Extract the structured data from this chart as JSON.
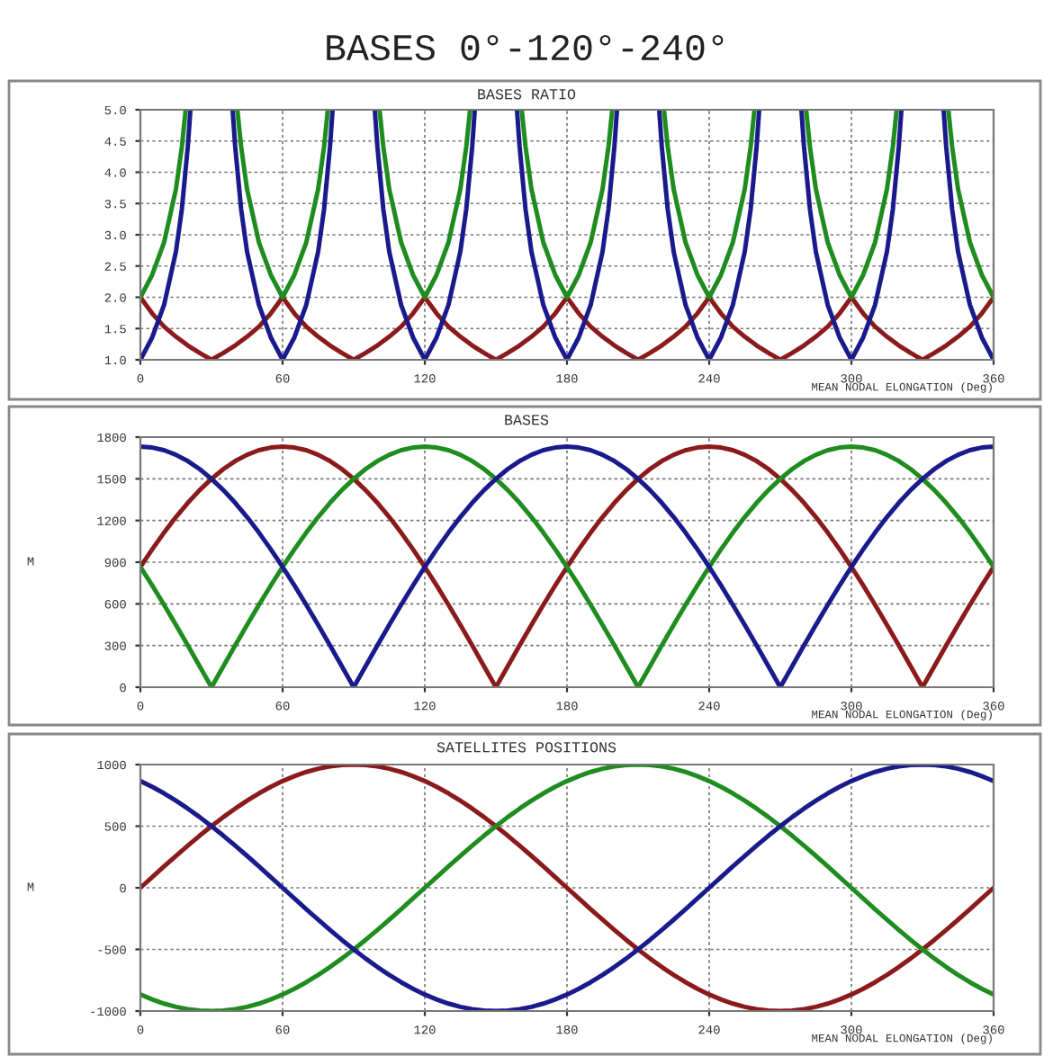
{
  "chart_data": [
    {
      "type": "line",
      "title": "BASES 0°-120°-240°",
      "subtitle": "BASES RATIO",
      "xlabel": "MEAN NODAL ELONGATION (Deg)",
      "xlim": [
        0,
        360
      ],
      "xticks": [
        0,
        60,
        120,
        180,
        240,
        300,
        360
      ],
      "ylim": [
        1,
        5
      ],
      "yticks": [
        {
          "value": 1,
          "label": "1.0"
        },
        {
          "value": 1.5,
          "label": "1.5"
        },
        {
          "value": 2,
          "label": "2.0"
        },
        {
          "value": 2.5,
          "label": "2.5"
        },
        {
          "value": 3,
          "label": "3.0"
        },
        {
          "value": 3.5,
          "label": "3.5"
        },
        {
          "value": 4,
          "label": "4.0"
        },
        {
          "value": 4.5,
          "label": "4.5"
        },
        {
          "value": 5,
          "label": "5.0"
        }
      ],
      "grid": true,
      "line_style": "solid",
      "marker": "none",
      "x": [
        0,
        5,
        10,
        15,
        20,
        25,
        30,
        35,
        40,
        45,
        50,
        55,
        60,
        65,
        70,
        75,
        80,
        85,
        90,
        95,
        100,
        105,
        110,
        115,
        120,
        125,
        130,
        135,
        140,
        145,
        150,
        155,
        160,
        165,
        170,
        175,
        180,
        185,
        190,
        195,
        200,
        205,
        210,
        215,
        220,
        225,
        230,
        235,
        240,
        245,
        250,
        255,
        260,
        265,
        270,
        275,
        280,
        285,
        290,
        295,
        300,
        305,
        310,
        315,
        320,
        325,
        330,
        335,
        340,
        345,
        350,
        355,
        360
      ],
      "series": [
        {
          "color": "#8b1a1a",
          "values": [
            2,
            1.74,
            1.53,
            1.37,
            1.23,
            1.11,
            1,
            1.11,
            1.23,
            1.37,
            1.53,
            1.74,
            2,
            1.74,
            1.53,
            1.37,
            1.23,
            1.11,
            1,
            1.11,
            1.23,
            1.37,
            1.53,
            1.74,
            2,
            1.74,
            1.53,
            1.37,
            1.23,
            1.11,
            1,
            1.11,
            1.23,
            1.37,
            1.53,
            1.74,
            2,
            1.74,
            1.53,
            1.37,
            1.23,
            1.11,
            1,
            1.11,
            1.23,
            1.37,
            1.53,
            1.74,
            2,
            1.74,
            1.53,
            1.37,
            1.23,
            1.11,
            1,
            1.11,
            1.23,
            1.37,
            1.53,
            1.74,
            2,
            1.74,
            1.53,
            1.37,
            1.23,
            1.11,
            1,
            1.11,
            1.23,
            1.37,
            1.53,
            1.74,
            2
          ]
        },
        {
          "color": "#1e8c1e",
          "x": [
            0,
            5,
            10,
            15,
            17.5,
            19.1,
            30,
            40.9,
            42.5,
            45,
            50,
            55,
            60,
            65,
            70,
            75,
            77.5,
            79.1,
            90,
            100.9,
            102.5,
            105,
            110,
            115,
            120,
            125,
            130,
            135,
            137.5,
            139.1,
            150,
            160.9,
            162.5,
            165,
            170,
            175,
            180,
            185,
            190,
            195,
            197.5,
            199.1,
            210,
            220.9,
            222.5,
            225,
            230,
            235,
            240,
            245,
            250,
            255,
            257.5,
            259.1,
            270,
            280.9,
            282.5,
            285,
            290,
            295,
            300,
            305,
            310,
            315,
            317.5,
            319.1,
            330,
            340.9,
            342.5,
            345,
            350,
            355,
            360
          ],
          "values": [
            2,
            2.36,
            2.88,
            3.73,
            4.41,
            5,
            null,
            5,
            4.41,
            3.73,
            2.88,
            2.36,
            2,
            2.36,
            2.88,
            3.73,
            4.41,
            5,
            null,
            5,
            4.41,
            3.73,
            2.88,
            2.36,
            2,
            2.36,
            2.88,
            3.73,
            4.41,
            5,
            null,
            5,
            4.41,
            3.73,
            2.88,
            2.36,
            2,
            2.36,
            2.88,
            3.73,
            4.41,
            5,
            null,
            5,
            4.41,
            3.73,
            2.88,
            2.36,
            2,
            2.36,
            2.88,
            3.73,
            4.41,
            5,
            null,
            5,
            4.41,
            3.73,
            2.88,
            2.36,
            2,
            2.36,
            2.88,
            3.73,
            4.41,
            5,
            null,
            5,
            4.41,
            3.73,
            2.88,
            2.36,
            2
          ]
        },
        {
          "color": "#1a1a8c",
          "x": [
            0,
            5,
            10,
            15,
            17.5,
            20,
            21.1,
            30,
            38.9,
            40,
            42.5,
            45,
            50,
            55,
            60,
            65,
            70,
            75,
            77.5,
            80,
            81.1,
            90,
            98.9,
            100,
            102.5,
            105,
            110,
            115,
            120,
            125,
            130,
            135,
            137.5,
            140,
            141.1,
            150,
            158.9,
            160,
            162.5,
            165,
            170,
            175,
            180,
            185,
            190,
            195,
            197.5,
            200,
            201.1,
            210,
            218.9,
            220,
            222.5,
            225,
            230,
            235,
            240,
            245,
            250,
            255,
            257.5,
            260,
            261.1,
            270,
            278.9,
            280,
            282.5,
            285,
            290,
            295,
            300,
            305,
            310,
            315,
            317.5,
            320,
            321.1,
            330,
            338.9,
            340,
            342.5,
            345,
            350,
            355,
            360
          ],
          "values": [
            1,
            1.36,
            1.88,
            2.73,
            3.41,
            4.41,
            5,
            null,
            5,
            4.41,
            3.41,
            2.73,
            1.88,
            1.36,
            1,
            1.36,
            1.88,
            2.73,
            3.41,
            4.41,
            5,
            null,
            5,
            4.41,
            3.41,
            2.73,
            1.88,
            1.36,
            1,
            1.36,
            1.88,
            2.73,
            3.41,
            4.41,
            5,
            null,
            5,
            4.41,
            3.41,
            2.73,
            1.88,
            1.36,
            1,
            1.36,
            1.88,
            2.73,
            3.41,
            4.41,
            5,
            null,
            5,
            4.41,
            3.41,
            2.73,
            1.88,
            1.36,
            1,
            1.36,
            1.88,
            2.73,
            3.41,
            4.41,
            5,
            null,
            5,
            4.41,
            3.41,
            2.73,
            1.88,
            1.36,
            1,
            1.36,
            1.88,
            2.73,
            3.41,
            4.41,
            5,
            null,
            5,
            4.41,
            3.41,
            2.73,
            1.88,
            1.36,
            1
          ]
        }
      ]
    },
    {
      "type": "line",
      "subtitle": "BASES",
      "xlabel": "MEAN NODAL ELONGATION (Deg)",
      "ylabel": "M",
      "xlim": [
        0,
        360
      ],
      "xticks": [
        0,
        60,
        120,
        180,
        240,
        300,
        360
      ],
      "ylim": [
        0,
        1800
      ],
      "yticks": [
        0,
        300,
        600,
        900,
        1200,
        1500,
        1800
      ],
      "grid": true,
      "line_style": "solid",
      "marker": "none",
      "x": [
        0,
        5,
        10,
        15,
        20,
        25,
        30,
        35,
        40,
        45,
        50,
        55,
        60,
        65,
        70,
        75,
        80,
        85,
        90,
        95,
        100,
        105,
        110,
        115,
        120,
        125,
        130,
        135,
        140,
        145,
        150,
        155,
        160,
        165,
        170,
        175,
        180,
        185,
        190,
        195,
        200,
        205,
        210,
        215,
        220,
        225,
        230,
        235,
        240,
        245,
        250,
        255,
        260,
        265,
        270,
        275,
        280,
        285,
        290,
        295,
        300,
        305,
        310,
        315,
        320,
        325,
        330,
        335,
        340,
        345,
        350,
        355,
        360
      ],
      "series": [
        {
          "color": "#8b1a1a",
          "values": [
            866,
            993,
            1113,
            1225,
            1327,
            1419,
            1500,
            1570,
            1628,
            1673,
            1706,
            1725,
            1732,
            1725,
            1706,
            1673,
            1628,
            1570,
            1500,
            1419,
            1327,
            1225,
            1113,
            993,
            866,
            732,
            592,
            448,
            301,
            151,
            0,
            151,
            301,
            448,
            592,
            732,
            866,
            993,
            1113,
            1225,
            1327,
            1419,
            1500,
            1570,
            1628,
            1673,
            1706,
            1725,
            1732,
            1725,
            1706,
            1673,
            1628,
            1570,
            1500,
            1419,
            1327,
            1225,
            1113,
            993,
            866,
            732,
            592,
            448,
            301,
            151,
            0,
            151,
            301,
            448,
            592,
            732,
            866
          ]
        },
        {
          "color": "#1e8c1e",
          "values": [
            866,
            732,
            592,
            448,
            301,
            151,
            0,
            151,
            301,
            448,
            592,
            732,
            866,
            993,
            1113,
            1225,
            1327,
            1419,
            1500,
            1570,
            1628,
            1673,
            1706,
            1725,
            1732,
            1725,
            1706,
            1673,
            1628,
            1570,
            1500,
            1419,
            1327,
            1225,
            1113,
            993,
            866,
            732,
            592,
            448,
            301,
            151,
            0,
            151,
            301,
            448,
            592,
            732,
            866,
            993,
            1113,
            1225,
            1327,
            1419,
            1500,
            1570,
            1628,
            1673,
            1706,
            1725,
            1732,
            1725,
            1706,
            1673,
            1628,
            1570,
            1500,
            1419,
            1327,
            1225,
            1113,
            993,
            866
          ]
        },
        {
          "color": "#1a1a8c",
          "values": [
            1732,
            1725,
            1706,
            1673,
            1628,
            1570,
            1500,
            1419,
            1327,
            1225,
            1113,
            993,
            866,
            732,
            592,
            448,
            301,
            151,
            0,
            151,
            301,
            448,
            592,
            732,
            866,
            993,
            1113,
            1225,
            1327,
            1419,
            1500,
            1570,
            1628,
            1673,
            1706,
            1725,
            1732,
            1725,
            1706,
            1673,
            1628,
            1570,
            1500,
            1419,
            1327,
            1225,
            1113,
            993,
            866,
            732,
            592,
            448,
            301,
            151,
            0,
            151,
            301,
            448,
            592,
            732,
            866,
            993,
            1113,
            1225,
            1327,
            1419,
            1500,
            1570,
            1628,
            1673,
            1706,
            1725,
            1732
          ]
        }
      ]
    },
    {
      "type": "line",
      "subtitle": "SATELLITES POSITIONS",
      "xlabel": "MEAN NODAL ELONGATION (Deg)",
      "ylabel": "M",
      "xlim": [
        0,
        360
      ],
      "xticks": [
        0,
        60,
        120,
        180,
        240,
        300,
        360
      ],
      "ylim": [
        -1000,
        1000
      ],
      "yticks": [
        -1000,
        -500,
        0,
        500,
        1000
      ],
      "grid": true,
      "line_style": "solid",
      "marker": "none",
      "x": [
        0,
        5,
        10,
        15,
        20,
        25,
        30,
        35,
        40,
        45,
        50,
        55,
        60,
        65,
        70,
        75,
        80,
        85,
        90,
        95,
        100,
        105,
        110,
        115,
        120,
        125,
        130,
        135,
        140,
        145,
        150,
        155,
        160,
        165,
        170,
        175,
        180,
        185,
        190,
        195,
        200,
        205,
        210,
        215,
        220,
        225,
        230,
        235,
        240,
        245,
        250,
        255,
        260,
        265,
        270,
        275,
        280,
        285,
        290,
        295,
        300,
        305,
        310,
        315,
        320,
        325,
        330,
        335,
        340,
        345,
        350,
        355,
        360
      ],
      "series": [
        {
          "color": "#8b1a1a",
          "values": [
            0,
            87,
            174,
            259,
            342,
            423,
            500,
            574,
            643,
            707,
            766,
            819,
            866,
            906,
            940,
            966,
            985,
            996,
            1000,
            996,
            985,
            966,
            940,
            906,
            866,
            819,
            766,
            707,
            643,
            574,
            500,
            423,
            342,
            259,
            174,
            87,
            0,
            -87,
            -174,
            -259,
            -342,
            -423,
            -500,
            -574,
            -643,
            -707,
            -766,
            -819,
            -866,
            -906,
            -940,
            -966,
            -985,
            -996,
            -1000,
            -996,
            -985,
            -966,
            -940,
            -906,
            -866,
            -819,
            -766,
            -707,
            -643,
            -574,
            -500,
            -423,
            -342,
            -259,
            -174,
            -87,
            0
          ]
        },
        {
          "color": "#1e8c1e",
          "values": [
            -866,
            -906,
            -940,
            -966,
            -985,
            -996,
            -1000,
            -996,
            -985,
            -966,
            -940,
            -906,
            -866,
            -819,
            -766,
            -707,
            -643,
            -574,
            -500,
            -423,
            -342,
            -259,
            -174,
            -87,
            0,
            87,
            174,
            259,
            342,
            423,
            500,
            574,
            643,
            707,
            766,
            819,
            866,
            906,
            940,
            966,
            985,
            996,
            1000,
            996,
            985,
            966,
            940,
            906,
            866,
            819,
            766,
            707,
            643,
            574,
            500,
            423,
            342,
            259,
            174,
            87,
            0,
            -87,
            -174,
            -259,
            -342,
            -423,
            -500,
            -574,
            -643,
            -707,
            -766,
            -819,
            -866
          ]
        },
        {
          "color": "#1a1a8c",
          "values": [
            866,
            819,
            766,
            707,
            643,
            574,
            500,
            423,
            342,
            259,
            174,
            87,
            0,
            -87,
            -174,
            -259,
            -342,
            -423,
            -500,
            -574,
            -643,
            -707,
            -766,
            -819,
            -866,
            -906,
            -940,
            -966,
            -985,
            -996,
            -1000,
            -996,
            -985,
            -966,
            -940,
            -906,
            -866,
            -819,
            -766,
            -707,
            -643,
            -574,
            -500,
            -423,
            -342,
            -259,
            -174,
            -87,
            0,
            87,
            174,
            259,
            342,
            423,
            500,
            574,
            643,
            707,
            766,
            819,
            866,
            906,
            940,
            966,
            985,
            996,
            1000,
            996,
            985,
            966,
            940,
            906,
            866
          ]
        }
      ]
    }
  ]
}
